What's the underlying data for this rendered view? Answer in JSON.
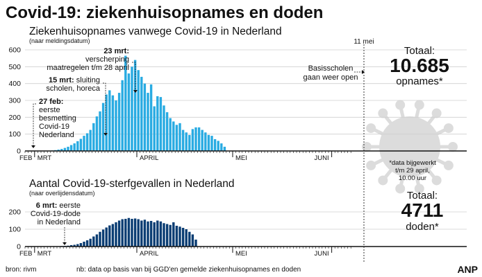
{
  "header": {
    "title": "Covid-19: ziekenhuisopnames en doden"
  },
  "colors": {
    "admissions": "#29abe2",
    "deaths": "#0a3d73",
    "virus": "#dcdcdc",
    "grid": "#cfcfcf"
  },
  "markers": {
    "may11_label": "11 mei",
    "schools_line1": "Basisscholen",
    "schools_line2": "gaan weer open"
  },
  "months": [
    "FEB",
    "MRT",
    "APRIL",
    "MEI",
    "JUNI"
  ],
  "totals": {
    "admissions_label": "Totaal:",
    "admissions_value": "10.685",
    "admissions_unit": "opnames*",
    "deaths_label": "Totaal:",
    "deaths_value": "4711",
    "deaths_unit": "doden*"
  },
  "footnote": {
    "line1": "*data bijgewerkt",
    "line2": "t/m 29 april,",
    "line3": "10.00 uur"
  },
  "annotations": {
    "a1_bold": "23 mrt:",
    "a1_line2": "verscherping",
    "a1_line3": "maatregelen t/m 28 april",
    "a2_bold": "15 mrt:",
    "a2_rest": "sluiting",
    "a2_line2": "scholen, horeca",
    "a3_bold": "27 feb:",
    "a3_line2": "eerste",
    "a3_line3": "besmetting",
    "a3_line4": "Covid-19",
    "a3_line5": "Nederland",
    "a4_bold": "6 mrt:",
    "a4_rest": "eerste",
    "a4_line2": "Covid-19-dode",
    "a4_line3": "in Nederland"
  },
  "footer": {
    "source": "bron: rivm",
    "note": "nb: data op basis van bij GGD'en gemelde ziekenhuisopnames en doden",
    "brand": "ANP"
  },
  "chart_data": [
    {
      "type": "bar",
      "title": "Ziekenhuisopnames vanwege Covid-19 in Nederland",
      "subtitle": "(naar meldingsdatum)",
      "ylim": [
        0,
        600
      ],
      "yticks": [
        0,
        100,
        200,
        300,
        400,
        500,
        600
      ],
      "start_date": "2020-02-27",
      "values": [
        1,
        0,
        1,
        0,
        0,
        1,
        1,
        2,
        3,
        5,
        8,
        12,
        18,
        25,
        35,
        45,
        58,
        72,
        90,
        105,
        125,
        165,
        205,
        235,
        285,
        335,
        360,
        330,
        300,
        345,
        420,
        565,
        460,
        500,
        540,
        480,
        440,
        400,
        345,
        395,
        265,
        325,
        320,
        270,
        230,
        195,
        175,
        155,
        165,
        125,
        110,
        95,
        130,
        140,
        140,
        125,
        110,
        95,
        90,
        70,
        60,
        45,
        25
      ]
    },
    {
      "type": "bar",
      "title": "Aantal Covid-19-sterfgevallen in Nederland",
      "subtitle": "(naar overlijdensdatum)",
      "ylim": [
        0,
        200
      ],
      "yticks": [
        0,
        100,
        200
      ],
      "start_date": "2020-03-06",
      "values": [
        1,
        1,
        2,
        3,
        4,
        5,
        8,
        10,
        14,
        20,
        28,
        36,
        45,
        58,
        70,
        85,
        98,
        110,
        122,
        130,
        140,
        150,
        158,
        160,
        165,
        160,
        162,
        158,
        150,
        155,
        145,
        148,
        140,
        150,
        145,
        135,
        130,
        125,
        140,
        120,
        115,
        108,
        100,
        85,
        70,
        40
      ]
    }
  ]
}
